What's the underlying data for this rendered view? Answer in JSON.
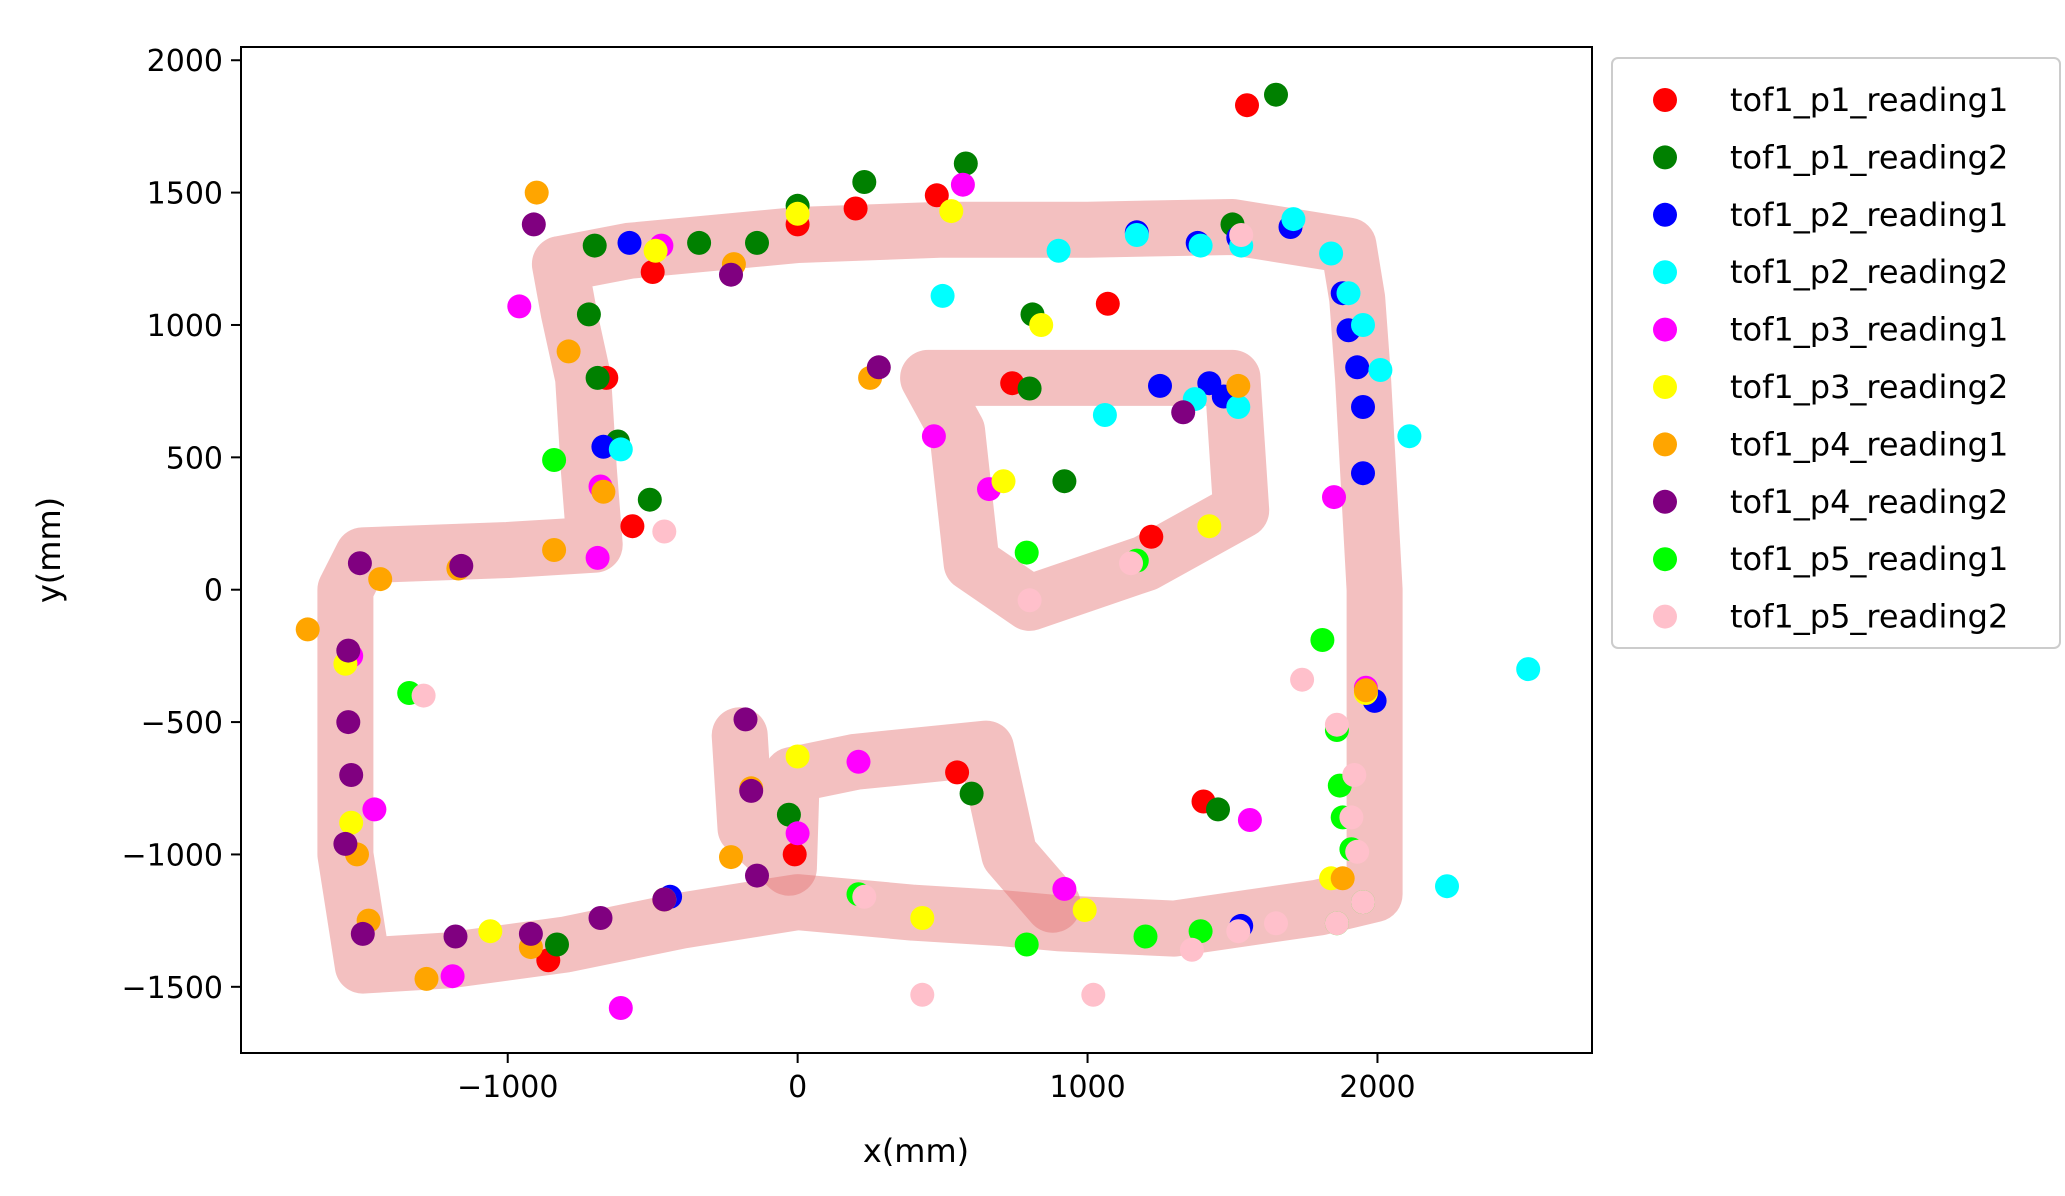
{
  "chart_data": {
    "type": "scatter",
    "title": "",
    "xlabel": "x(mm)",
    "ylabel": "y(mm)",
    "xlim": [
      -1920,
      2740
    ],
    "ylim": [
      -1750,
      2050
    ],
    "xticks": [
      -1000,
      0,
      1000,
      2000
    ],
    "yticks": [
      -1500,
      -1000,
      -500,
      0,
      500,
      1000,
      1500,
      2000
    ],
    "xtick_labels": [
      "−1000",
      "0",
      "1000",
      "2000"
    ],
    "ytick_labels": [
      "−1500",
      "−1000",
      "−500",
      "0",
      "500",
      "1000",
      "1500",
      "2000"
    ],
    "grid": false,
    "legend_position": "outside-right-top",
    "trajectory": {
      "color": "#e57373",
      "paths": [
        [
          [
            -820,
            1230
          ],
          [
            -580,
            1280
          ],
          [
            0,
            1340
          ],
          [
            500,
            1360
          ],
          [
            1000,
            1360
          ],
          [
            1500,
            1370
          ],
          [
            1900,
            1300
          ],
          [
            1930,
            1100
          ],
          [
            1950,
            800
          ],
          [
            1970,
            400
          ],
          [
            1990,
            0
          ],
          [
            1990,
            -400
          ],
          [
            1990,
            -800
          ],
          [
            1990,
            -1150
          ],
          [
            1800,
            -1200
          ],
          [
            1300,
            -1280
          ],
          [
            900,
            -1260
          ],
          [
            700,
            -1240
          ],
          [
            400,
            -1220
          ],
          [
            0,
            -1180
          ],
          [
            -400,
            -1250
          ],
          [
            -800,
            -1340
          ],
          [
            -1200,
            -1400
          ],
          [
            -1500,
            -1420
          ],
          [
            -1560,
            -1000
          ],
          [
            -1560,
            -500
          ],
          [
            -1560,
            0
          ],
          [
            -1500,
            130
          ],
          [
            -1000,
            150
          ],
          [
            -700,
            170
          ],
          [
            -720,
            450
          ],
          [
            -740,
            800
          ],
          [
            -790,
            1050
          ],
          [
            -820,
            1230
          ]
        ],
        [
          [
            -200,
            -550
          ],
          [
            -180,
            -900
          ],
          [
            -30,
            -1050
          ],
          [
            -20,
            -700
          ],
          [
            200,
            -650
          ],
          [
            650,
            -600
          ],
          [
            730,
            -1000
          ],
          [
            880,
            -1190
          ]
        ],
        [
          [
            450,
            800
          ],
          [
            1000,
            800
          ],
          [
            1500,
            800
          ],
          [
            1530,
            300
          ],
          [
            1200,
            100
          ],
          [
            800,
            -50
          ],
          [
            600,
            100
          ],
          [
            550,
            600
          ],
          [
            450,
            800
          ]
        ]
      ]
    },
    "series": [
      {
        "name": "tof1_p1_reading1",
        "color": "#ff0000",
        "points": [
          [
            1550,
            1830
          ],
          [
            480,
            1490
          ],
          [
            200,
            1440
          ],
          [
            0,
            1380
          ],
          [
            -500,
            1200
          ],
          [
            1070,
            1080
          ],
          [
            -660,
            800
          ],
          [
            740,
            780
          ],
          [
            -570,
            240
          ],
          [
            1220,
            200
          ],
          [
            550,
            -690
          ],
          [
            1400,
            -800
          ],
          [
            -10,
            -1000
          ],
          [
            -860,
            -1400
          ]
        ]
      },
      {
        "name": "tof1_p1_reading2",
        "color": "#008000",
        "points": [
          [
            1650,
            1870
          ],
          [
            580,
            1610
          ],
          [
            230,
            1540
          ],
          [
            0,
            1450
          ],
          [
            -700,
            1300
          ],
          [
            -340,
            1310
          ],
          [
            -140,
            1310
          ],
          [
            -720,
            1040
          ],
          [
            -690,
            800
          ],
          [
            -620,
            560
          ],
          [
            -510,
            340
          ],
          [
            810,
            1040
          ],
          [
            800,
            760
          ],
          [
            920,
            410
          ],
          [
            1500,
            1380
          ],
          [
            600,
            -770
          ],
          [
            1450,
            -830
          ],
          [
            -30,
            -850
          ],
          [
            -830,
            -1340
          ]
        ]
      },
      {
        "name": "tof1_p2_reading1",
        "color": "#0000ff",
        "points": [
          [
            -580,
            1310
          ],
          [
            1170,
            1350
          ],
          [
            1380,
            1310
          ],
          [
            1520,
            1330
          ],
          [
            1700,
            1370
          ],
          [
            1880,
            1120
          ],
          [
            1900,
            980
          ],
          [
            1930,
            840
          ],
          [
            1950,
            690
          ],
          [
            1950,
            440
          ],
          [
            1990,
            -420
          ],
          [
            -670,
            540
          ],
          [
            1250,
            770
          ],
          [
            1420,
            780
          ],
          [
            1470,
            730
          ],
          [
            -440,
            -1160
          ],
          [
            1530,
            -1270
          ]
        ]
      },
      {
        "name": "tof1_p2_reading2",
        "color": "#00ffff",
        "points": [
          [
            1710,
            1400
          ],
          [
            1840,
            1270
          ],
          [
            1900,
            1120
          ],
          [
            1950,
            1000
          ],
          [
            2010,
            830
          ],
          [
            2110,
            580
          ],
          [
            500,
            1110
          ],
          [
            900,
            1280
          ],
          [
            1170,
            1340
          ],
          [
            1390,
            1300
          ],
          [
            1530,
            1300
          ],
          [
            1060,
            660
          ],
          [
            1370,
            720
          ],
          [
            1520,
            690
          ],
          [
            -610,
            530
          ],
          [
            2520,
            -300
          ],
          [
            2240,
            -1120
          ]
        ]
      },
      {
        "name": "tof1_p3_reading1",
        "color": "#ff00ff",
        "points": [
          [
            570,
            1530
          ],
          [
            -960,
            1070
          ],
          [
            -470,
            1300
          ],
          [
            470,
            580
          ],
          [
            660,
            380
          ],
          [
            -680,
            390
          ],
          [
            -690,
            120
          ],
          [
            1850,
            350
          ],
          [
            1960,
            -370
          ],
          [
            -1540,
            -250
          ],
          [
            -1460,
            -830
          ],
          [
            210,
            -650
          ],
          [
            0,
            -920
          ],
          [
            920,
            -1130
          ],
          [
            1560,
            -870
          ],
          [
            -1190,
            -1460
          ],
          [
            -610,
            -1580
          ]
        ]
      },
      {
        "name": "tof1_p3_reading2",
        "color": "#ffff00",
        "points": [
          [
            530,
            1430
          ],
          [
            0,
            1420
          ],
          [
            -490,
            1280
          ],
          [
            840,
            1000
          ],
          [
            710,
            410
          ],
          [
            1420,
            240
          ],
          [
            0,
            -630
          ],
          [
            1960,
            -390
          ],
          [
            -1560,
            -280
          ],
          [
            -1540,
            -880
          ],
          [
            -1060,
            -1290
          ],
          [
            430,
            -1240
          ],
          [
            990,
            -1210
          ],
          [
            1840,
            -1090
          ],
          [
            -460,
            -1170
          ]
        ]
      },
      {
        "name": "tof1_p4_reading1",
        "color": "#ffa500",
        "points": [
          [
            -900,
            1500
          ],
          [
            -220,
            1230
          ],
          [
            -790,
            900
          ],
          [
            -670,
            370
          ],
          [
            -840,
            150
          ],
          [
            250,
            800
          ],
          [
            1520,
            770
          ],
          [
            -1440,
            40
          ],
          [
            -1170,
            80
          ],
          [
            -1690,
            -150
          ],
          [
            -1520,
            -1000
          ],
          [
            -1480,
            -1250
          ],
          [
            -160,
            -750
          ],
          [
            -230,
            -1010
          ],
          [
            -920,
            -1350
          ],
          [
            -1280,
            -1470
          ],
          [
            1880,
            -1090
          ],
          [
            1960,
            -380
          ]
        ]
      },
      {
        "name": "tof1_p4_reading2",
        "color": "#800080",
        "points": [
          [
            -910,
            1380
          ],
          [
            -230,
            1190
          ],
          [
            280,
            840
          ],
          [
            1330,
            670
          ],
          [
            -1510,
            100
          ],
          [
            -1160,
            90
          ],
          [
            -1550,
            -230
          ],
          [
            -1550,
            -500
          ],
          [
            -1540,
            -700
          ],
          [
            -1560,
            -960
          ],
          [
            -1500,
            -1300
          ],
          [
            -180,
            -490
          ],
          [
            -160,
            -760
          ],
          [
            -140,
            -1080
          ],
          [
            -460,
            -1170
          ],
          [
            -680,
            -1240
          ],
          [
            -920,
            -1300
          ],
          [
            -1180,
            -1310
          ]
        ]
      },
      {
        "name": "tof1_p5_reading1",
        "color": "#00ff00",
        "points": [
          [
            -840,
            490
          ],
          [
            -1340,
            -390
          ],
          [
            790,
            140
          ],
          [
            1170,
            110
          ],
          [
            1810,
            -190
          ],
          [
            1860,
            -530
          ],
          [
            1870,
            -740
          ],
          [
            1880,
            -860
          ],
          [
            1910,
            -980
          ],
          [
            1950,
            -1180
          ],
          [
            1860,
            -1260
          ],
          [
            1390,
            -1290
          ],
          [
            1200,
            -1310
          ],
          [
            790,
            -1340
          ],
          [
            210,
            -1150
          ]
        ]
      },
      {
        "name": "tof1_p5_reading2",
        "color": "#ffc0cb",
        "points": [
          [
            -460,
            220
          ],
          [
            1150,
            100
          ],
          [
            800,
            -40
          ],
          [
            1740,
            -340
          ],
          [
            1860,
            -510
          ],
          [
            1920,
            -700
          ],
          [
            1910,
            -860
          ],
          [
            1930,
            -990
          ],
          [
            1950,
            -1180
          ],
          [
            1860,
            -1260
          ],
          [
            1650,
            -1260
          ],
          [
            1520,
            -1290
          ],
          [
            1360,
            -1360
          ],
          [
            1020,
            -1530
          ],
          [
            430,
            -1530
          ],
          [
            230,
            -1160
          ],
          [
            -1290,
            -400
          ],
          [
            1530,
            1340
          ]
        ]
      }
    ]
  }
}
